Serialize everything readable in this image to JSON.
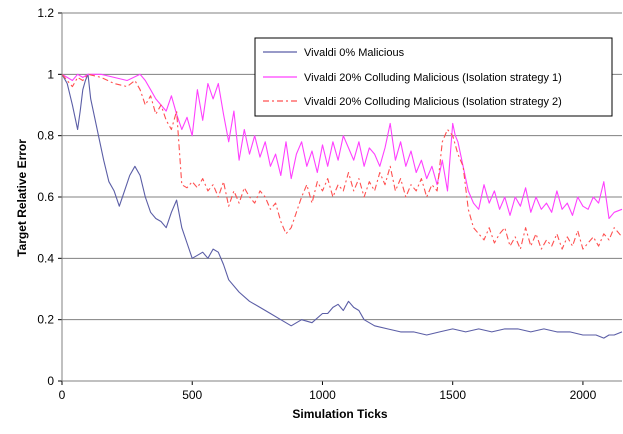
{
  "chart_data": {
    "type": "line",
    "title": "",
    "xlabel": "Simulation Ticks",
    "ylabel": "Target Relative Error",
    "xlim": [
      0,
      2150
    ],
    "ylim": [
      0,
      1.2
    ],
    "x_ticks": [
      0,
      500,
      1000,
      1500,
      2000
    ],
    "y_ticks": [
      0,
      0.2,
      0.4,
      0.6,
      0.8,
      1,
      1.2
    ],
    "x_tick_labels": [
      "0",
      "500",
      "1000",
      "1500",
      "2000"
    ],
    "y_tick_labels": [
      "0",
      "0.2",
      "0.4",
      "0.6",
      "0.8",
      "1",
      "1.2"
    ],
    "grid": "horizontal",
    "legend_position": "top-right",
    "series": [
      {
        "name": "Vivaldi 0% Malicious",
        "color": "#5b5ea6",
        "style": "solid",
        "x": [
          0,
          20,
          40,
          60,
          70,
          80,
          90,
          100,
          110,
          120,
          140,
          160,
          180,
          200,
          220,
          240,
          260,
          280,
          300,
          320,
          340,
          360,
          380,
          400,
          420,
          440,
          460,
          480,
          500,
          520,
          540,
          560,
          580,
          600,
          620,
          640,
          680,
          720,
          760,
          800,
          840,
          880,
          920,
          960,
          1000,
          1020,
          1040,
          1060,
          1080,
          1100,
          1120,
          1140,
          1160,
          1200,
          1250,
          1300,
          1350,
          1400,
          1450,
          1500,
          1550,
          1600,
          1650,
          1700,
          1750,
          1800,
          1850,
          1900,
          1950,
          2000,
          2050,
          2080,
          2100,
          2120,
          2150
        ],
        "y": [
          1.0,
          0.97,
          0.9,
          0.82,
          0.88,
          0.95,
          0.98,
          1.0,
          0.92,
          0.88,
          0.8,
          0.72,
          0.65,
          0.62,
          0.57,
          0.62,
          0.67,
          0.7,
          0.67,
          0.6,
          0.55,
          0.53,
          0.52,
          0.5,
          0.55,
          0.59,
          0.5,
          0.45,
          0.4,
          0.41,
          0.42,
          0.4,
          0.43,
          0.42,
          0.38,
          0.33,
          0.29,
          0.26,
          0.24,
          0.22,
          0.2,
          0.18,
          0.2,
          0.19,
          0.22,
          0.22,
          0.24,
          0.25,
          0.23,
          0.26,
          0.24,
          0.23,
          0.2,
          0.18,
          0.17,
          0.16,
          0.16,
          0.15,
          0.16,
          0.17,
          0.16,
          0.17,
          0.16,
          0.17,
          0.17,
          0.16,
          0.17,
          0.16,
          0.16,
          0.15,
          0.15,
          0.14,
          0.15,
          0.15,
          0.16
        ]
      },
      {
        "name": "Vivaldi 20% Colluding Malicious (Isolation strategy 1)",
        "color": "#ff40ff",
        "style": "solid",
        "x": [
          0,
          20,
          40,
          60,
          80,
          100,
          150,
          200,
          250,
          300,
          320,
          340,
          360,
          380,
          400,
          420,
          440,
          460,
          480,
          500,
          520,
          540,
          560,
          580,
          600,
          620,
          640,
          660,
          680,
          700,
          720,
          740,
          760,
          780,
          800,
          820,
          840,
          860,
          880,
          900,
          920,
          940,
          960,
          980,
          1000,
          1020,
          1040,
          1060,
          1080,
          1100,
          1120,
          1140,
          1160,
          1180,
          1200,
          1220,
          1240,
          1260,
          1280,
          1300,
          1320,
          1340,
          1360,
          1380,
          1400,
          1420,
          1440,
          1460,
          1480,
          1500,
          1510,
          1520,
          1540,
          1560,
          1580,
          1600,
          1620,
          1640,
          1660,
          1680,
          1700,
          1720,
          1740,
          1760,
          1780,
          1800,
          1820,
          1840,
          1860,
          1880,
          1900,
          1920,
          1940,
          1960,
          1980,
          2000,
          2020,
          2040,
          2060,
          2080,
          2100,
          2120,
          2150
        ],
        "y": [
          1.0,
          0.99,
          0.98,
          1.0,
          0.99,
          1.0,
          1.0,
          0.99,
          0.98,
          1.0,
          0.98,
          0.95,
          0.92,
          0.9,
          0.88,
          0.93,
          0.87,
          0.82,
          0.86,
          0.8,
          0.95,
          0.85,
          0.97,
          0.92,
          0.97,
          0.87,
          0.78,
          0.88,
          0.72,
          0.82,
          0.74,
          0.8,
          0.73,
          0.78,
          0.7,
          0.74,
          0.67,
          0.78,
          0.66,
          0.74,
          0.78,
          0.7,
          0.75,
          0.68,
          0.77,
          0.7,
          0.78,
          0.72,
          0.8,
          0.76,
          0.72,
          0.78,
          0.7,
          0.76,
          0.74,
          0.7,
          0.76,
          0.84,
          0.72,
          0.78,
          0.7,
          0.75,
          0.68,
          0.72,
          0.66,
          0.7,
          0.64,
          0.72,
          0.62,
          0.84,
          0.8,
          0.78,
          0.7,
          0.62,
          0.58,
          0.56,
          0.64,
          0.58,
          0.62,
          0.56,
          0.6,
          0.54,
          0.6,
          0.57,
          0.63,
          0.55,
          0.6,
          0.56,
          0.58,
          0.55,
          0.62,
          0.56,
          0.58,
          0.54,
          0.6,
          0.57,
          0.56,
          0.6,
          0.58,
          0.65,
          0.53,
          0.55,
          0.56
        ]
      },
      {
        "name": "Vivaldi 20% Colluding Malicious (Isolation strategy 2)",
        "color": "#ff5050",
        "style": "dashdot",
        "x": [
          0,
          20,
          40,
          60,
          80,
          100,
          150,
          200,
          250,
          280,
          300,
          320,
          340,
          360,
          380,
          400,
          420,
          440,
          460,
          480,
          500,
          520,
          540,
          560,
          580,
          600,
          620,
          640,
          660,
          680,
          700,
          720,
          740,
          760,
          780,
          800,
          820,
          840,
          860,
          880,
          900,
          920,
          940,
          960,
          980,
          1000,
          1020,
          1040,
          1060,
          1080,
          1100,
          1120,
          1140,
          1160,
          1180,
          1200,
          1220,
          1240,
          1260,
          1280,
          1300,
          1320,
          1340,
          1360,
          1380,
          1400,
          1420,
          1440,
          1460,
          1480,
          1500,
          1520,
          1540,
          1560,
          1580,
          1600,
          1620,
          1640,
          1660,
          1680,
          1700,
          1720,
          1740,
          1760,
          1780,
          1800,
          1820,
          1840,
          1860,
          1880,
          1900,
          1920,
          1940,
          1960,
          1980,
          2000,
          2020,
          2040,
          2060,
          2080,
          2100,
          2120,
          2150
        ],
        "y": [
          1.0,
          0.98,
          0.96,
          0.99,
          0.98,
          1.0,
          0.99,
          0.97,
          0.96,
          0.98,
          0.95,
          0.9,
          0.93,
          0.87,
          0.9,
          0.85,
          0.82,
          0.88,
          0.64,
          0.63,
          0.65,
          0.63,
          0.66,
          0.62,
          0.64,
          0.6,
          0.65,
          0.57,
          0.62,
          0.58,
          0.63,
          0.6,
          0.58,
          0.62,
          0.6,
          0.56,
          0.58,
          0.52,
          0.48,
          0.5,
          0.55,
          0.6,
          0.64,
          0.58,
          0.65,
          0.62,
          0.66,
          0.6,
          0.64,
          0.62,
          0.68,
          0.62,
          0.66,
          0.6,
          0.65,
          0.62,
          0.68,
          0.64,
          0.7,
          0.62,
          0.66,
          0.6,
          0.64,
          0.62,
          0.66,
          0.6,
          0.64,
          0.62,
          0.78,
          0.82,
          0.8,
          0.74,
          0.7,
          0.56,
          0.5,
          0.48,
          0.46,
          0.5,
          0.45,
          0.48,
          0.5,
          0.44,
          0.47,
          0.43,
          0.5,
          0.44,
          0.48,
          0.43,
          0.46,
          0.44,
          0.48,
          0.43,
          0.47,
          0.44,
          0.49,
          0.43,
          0.45,
          0.47,
          0.44,
          0.48,
          0.46,
          0.5,
          0.47
        ]
      }
    ]
  }
}
